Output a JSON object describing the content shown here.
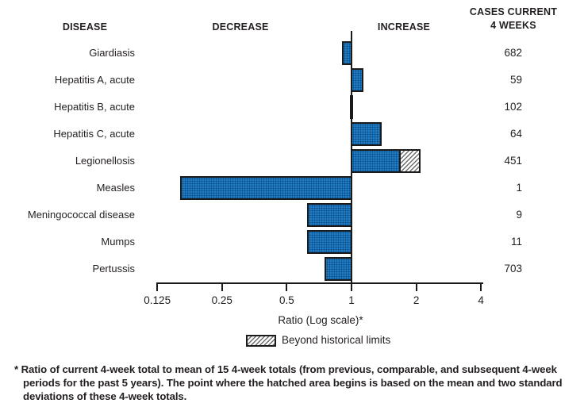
{
  "header": {
    "disease": "DISEASE",
    "decrease": "DECREASE",
    "increase": "INCREASE",
    "cases_line1": "CASES CURRENT",
    "cases_line2": "4 WEEKS"
  },
  "axis": {
    "label": "Ratio (Log scale)*",
    "tick_labels": [
      "0.125",
      "0.25",
      "0.5",
      "1",
      "2",
      "4"
    ]
  },
  "legend": {
    "beyond_label": "Beyond historical limits"
  },
  "footnote": "* Ratio of current 4-week total to mean of 15 4-week totals (from previous, comparable, and subsequent 4-week periods for the past 5 years). The point where the hatched area begins is based on the mean and two standard deviations of these 4-week totals.",
  "colors": {
    "bar_fill": "#1473bd",
    "bar_border": "#1a1a1a",
    "text": "#231f20",
    "hatch_line": "#6e6e6e"
  },
  "chart_data": {
    "type": "bar",
    "orientation": "horizontal",
    "x_scale": "log2",
    "baseline": 1,
    "xlabel": "Ratio (Log scale)*",
    "x_ticks": [
      0.125,
      0.25,
      0.5,
      1,
      2,
      4
    ],
    "xlim": [
      0.125,
      4
    ],
    "legend_entries": [
      "Beyond historical limits"
    ],
    "columns": [
      "DISEASE",
      "RATIO",
      "BEYOND_HISTORICAL_LIMIT_RATIO",
      "CASES CURRENT 4 WEEKS"
    ],
    "rows": [
      {
        "disease": "Giardiasis",
        "ratio": 0.9,
        "beyond": null,
        "cases": 682
      },
      {
        "disease": "Hepatitis A, acute",
        "ratio": 1.14,
        "beyond": null,
        "cases": 59
      },
      {
        "disease": "Hepatitis B, acute",
        "ratio": 0.98,
        "beyond": null,
        "cases": 102
      },
      {
        "disease": "Hepatitis C, acute",
        "ratio": 1.38,
        "beyond": null,
        "cases": 64
      },
      {
        "disease": "Legionellosis",
        "ratio": 1.69,
        "beyond": 2.09,
        "cases": 451
      },
      {
        "disease": "Measles",
        "ratio": 0.16,
        "beyond": null,
        "cases": 1
      },
      {
        "disease": "Meningococcal disease",
        "ratio": 0.62,
        "beyond": null,
        "cases": 9
      },
      {
        "disease": "Mumps",
        "ratio": 0.62,
        "beyond": null,
        "cases": 11
      },
      {
        "disease": "Pertussis",
        "ratio": 0.75,
        "beyond": null,
        "cases": 703
      }
    ]
  }
}
